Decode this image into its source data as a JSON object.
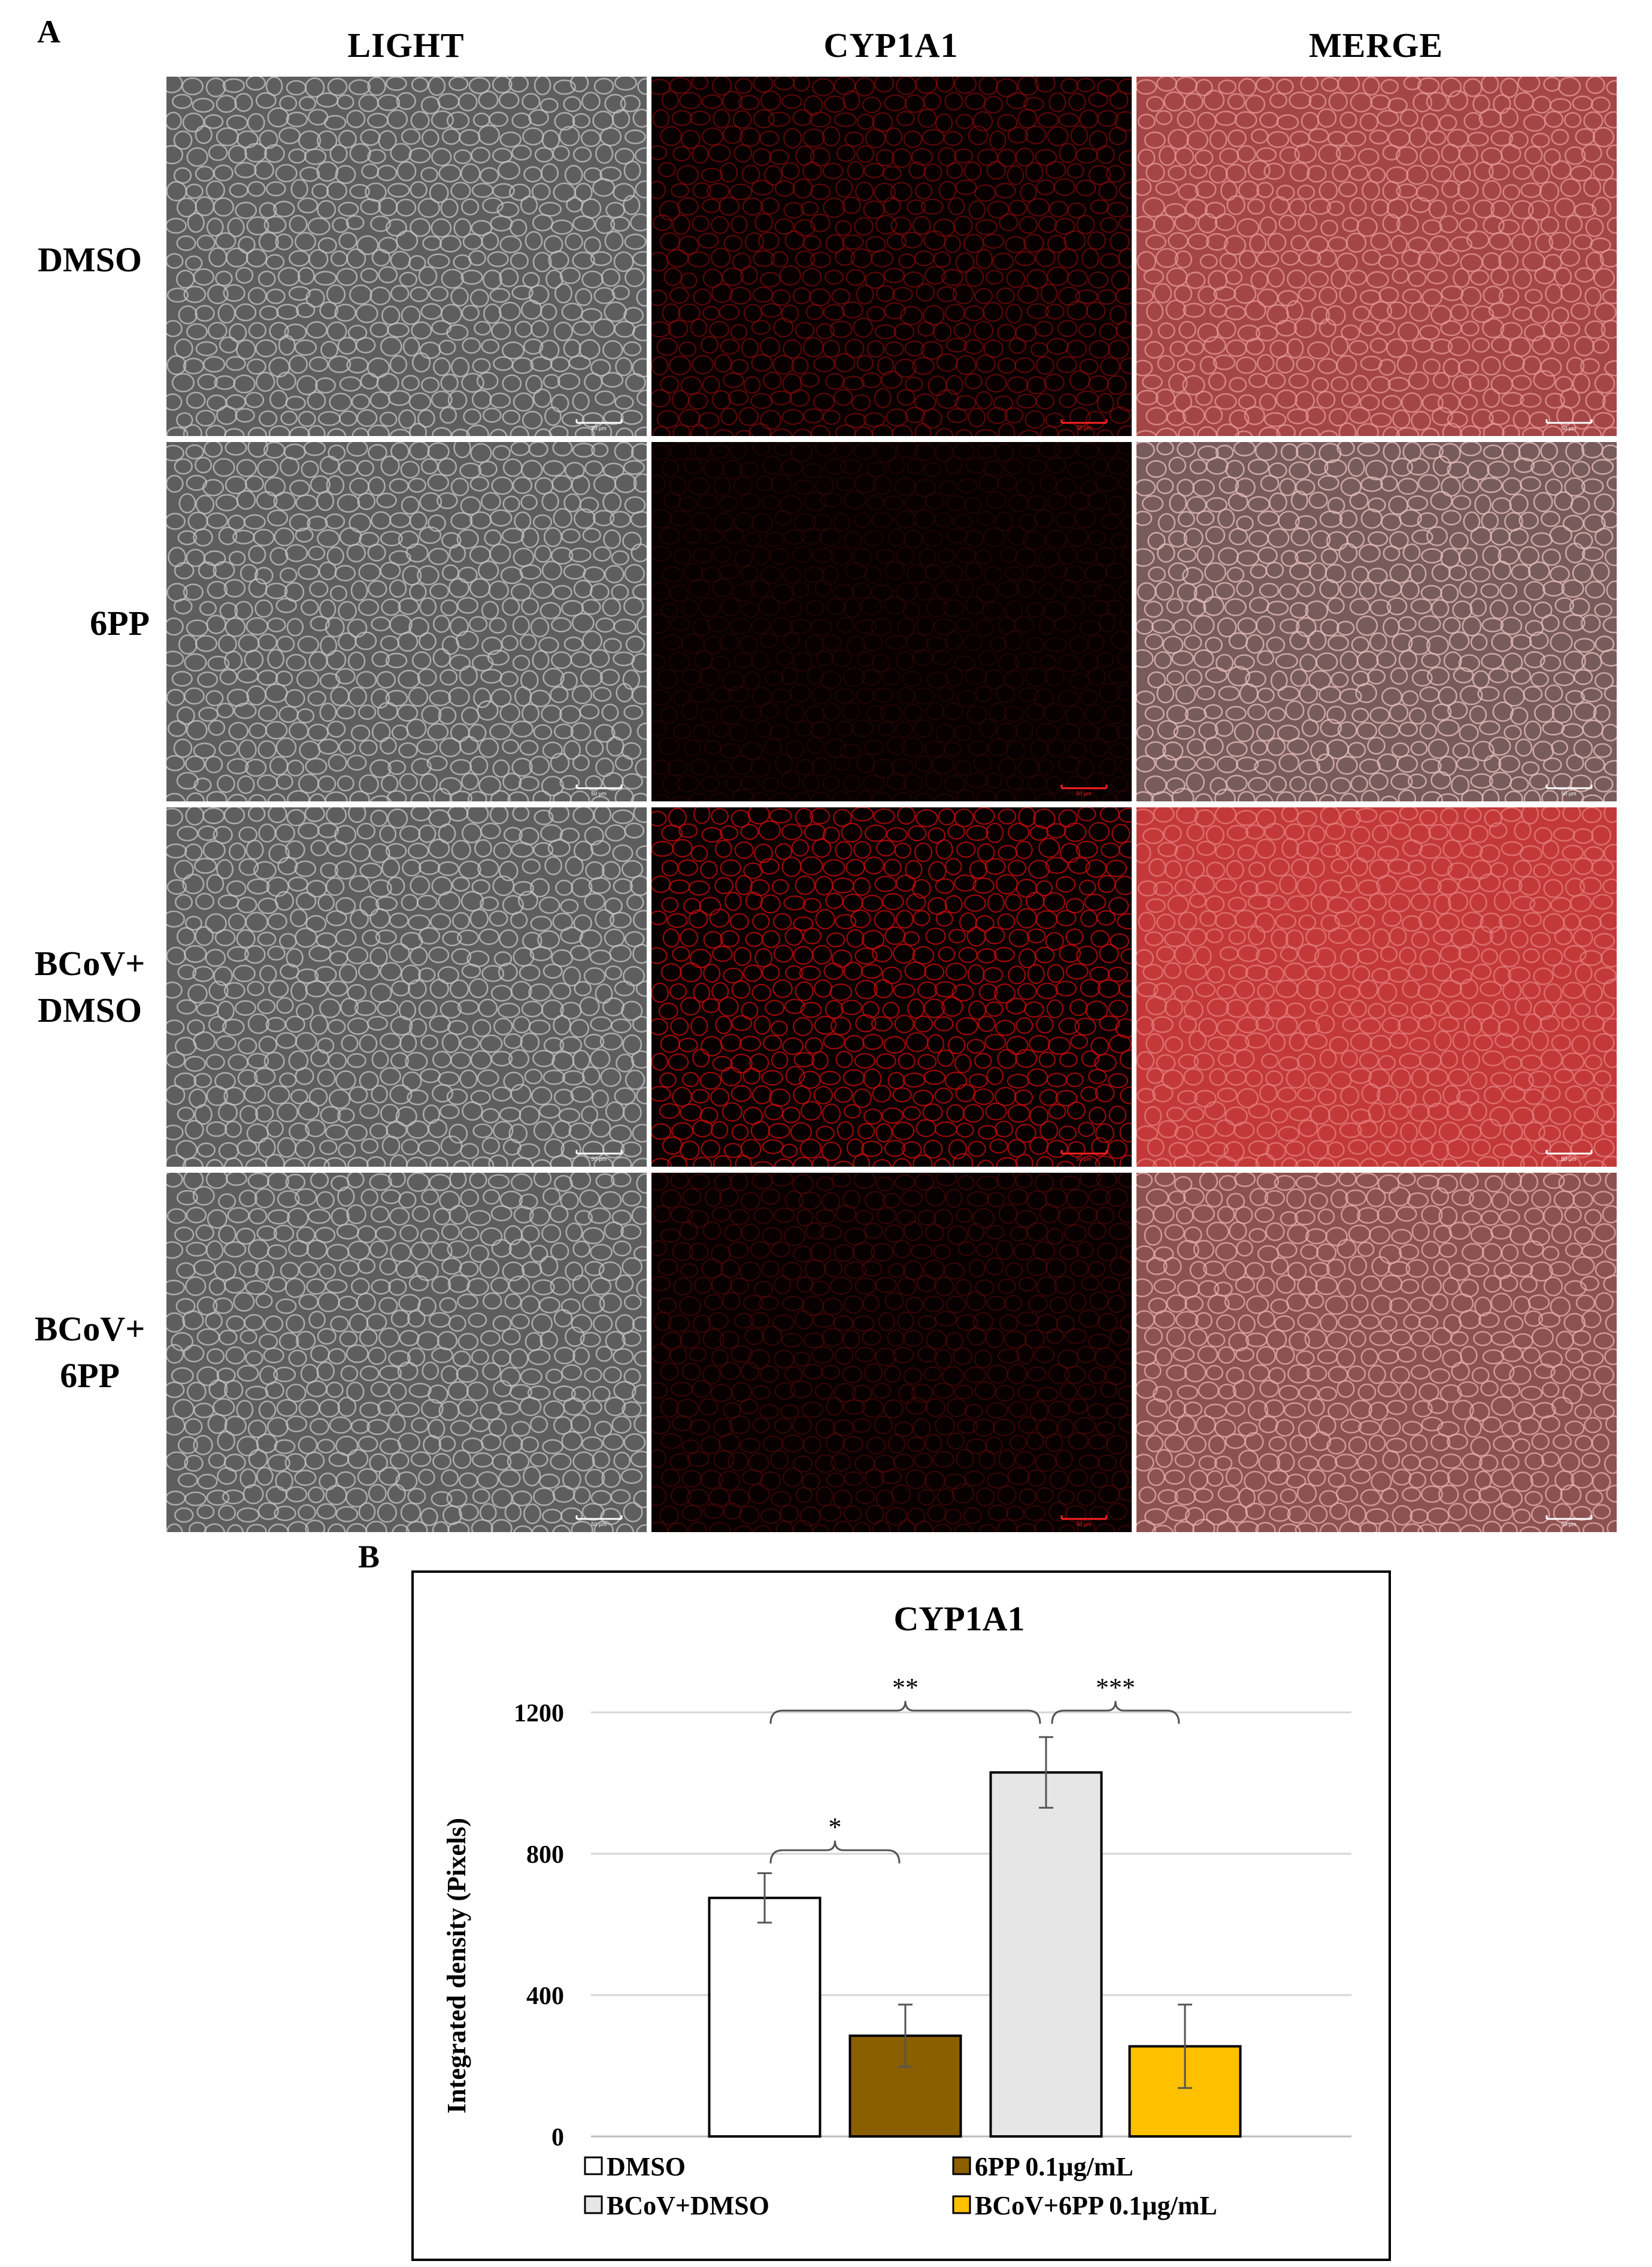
{
  "panel_a": {
    "letter": "A",
    "columns": [
      "LIGHT",
      "CYP1A1",
      "MERGE"
    ],
    "rows": [
      {
        "label_lines": [
          "DMSO"
        ],
        "red_level": 0.55
      },
      {
        "label_lines": [
          "6PP"
        ],
        "red_level": 0.1
      },
      {
        "label_lines": [
          "BCoV+",
          "DMSO"
        ],
        "red_level": 0.85
      },
      {
        "label_lines": [
          "BCoV+",
          "6PP"
        ],
        "red_level": 0.3
      }
    ],
    "scale_bar_label": "50 µm",
    "colors": {
      "fluorescence": "#d02020",
      "scale_bar": "#ffffff",
      "scale_bar_red": "#ff2020"
    }
  },
  "panel_b": {
    "letter": "B",
    "significance": [
      {
        "text": "*",
        "from": 0,
        "to": 1
      },
      {
        "text": "**",
        "from": 0,
        "to": 2
      },
      {
        "text": "***",
        "from": 2,
        "to": 3
      }
    ],
    "legend": [
      {
        "label": "DMSO",
        "color": "#ffffff"
      },
      {
        "label": "6PP 0.1µg/mL",
        "color": "#8b5e00"
      },
      {
        "label": "BCoV+DMSO",
        "color": "#e6e6e6"
      },
      {
        "label": "BCoV+6PP 0.1µg/mL",
        "color": "#ffc000"
      }
    ]
  },
  "chart_data": {
    "type": "bar",
    "title": "CYP1A1",
    "ylabel": "Integrated density (Pixels)",
    "xlabel": "",
    "categories": [
      "DMSO",
      "6PP 0.1µg/mL",
      "BCoV+DMSO",
      "BCoV+6PP 0.1µg/mL"
    ],
    "values": [
      675,
      285,
      1030,
      255
    ],
    "errors": [
      70,
      88,
      100,
      118
    ],
    "colors": [
      "#ffffff",
      "#8b5e00",
      "#e6e6e6",
      "#ffc000"
    ],
    "ylim": [
      0,
      1200
    ],
    "yticks": [
      0,
      400,
      800,
      1200
    ],
    "grid": true,
    "legend_position": "bottom"
  }
}
